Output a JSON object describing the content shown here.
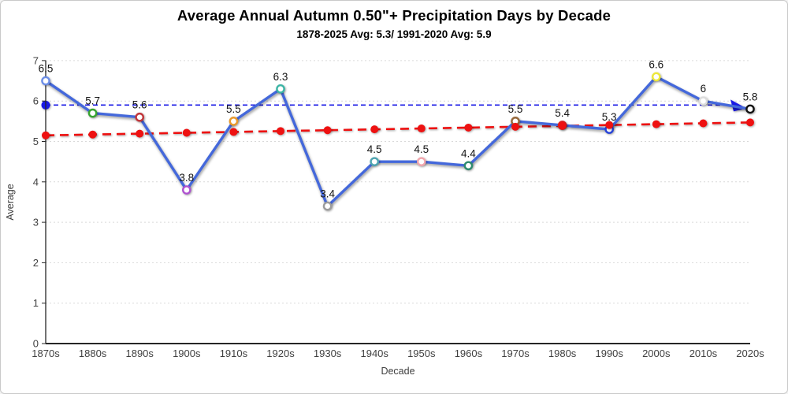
{
  "chart_data": {
    "type": "line",
    "title": "Average Annual Autumn 0.50\"+ Precipitation Days by Decade",
    "subtitle": "1878-2025 Avg: 5.3/ 1991-2020 Avg: 5.9",
    "xlabel": "Decade",
    "ylabel": "Average",
    "ylim": [
      0,
      7
    ],
    "yticks": [
      0,
      1,
      2,
      3,
      4,
      5,
      6,
      7
    ],
    "grid": "horizontal-dotted",
    "legend_position": "none",
    "categories": [
      "1870s",
      "1880s",
      "1890s",
      "1900s",
      "1910s",
      "1920s",
      "1930s",
      "1940s",
      "1950s",
      "1960s",
      "1970s",
      "1980s",
      "1990s",
      "2000s",
      "2010s",
      "2020s"
    ],
    "series": [
      {
        "name": "decade-average",
        "type": "line-markers",
        "values": [
          6.5,
          5.7,
          5.6,
          3.8,
          5.5,
          6.3,
          3.4,
          4.5,
          4.5,
          4.4,
          5.5,
          5.4,
          5.3,
          6.6,
          6,
          5.8
        ],
        "point_labels": [
          "6.5",
          "5.7",
          "5.6",
          "3.8",
          "5.5",
          "6.3",
          "3.4",
          "4.5",
          "4.5",
          "4.4",
          "5.5",
          "5.4",
          "5.3",
          "6.6",
          "6",
          "5.8"
        ],
        "line_color": "#4468db",
        "marker_fill": "#ffffff",
        "marker_ring_colors": [
          "#6c8ee8",
          "#36a42f",
          "#c2363b",
          "#af52d0",
          "#e99a2c",
          "#3ab5a5",
          "#9c9c9c",
          "#4da4b0",
          "#f2a5ac",
          "#2e8b6e",
          "#96683a",
          "#e02020",
          "#2743d9",
          "#ede83b",
          "#dcdcdc",
          "#111111"
        ]
      },
      {
        "name": "linear-trend",
        "type": "trend-dashed",
        "start_value": 5.15,
        "end_value": 5.47,
        "color": "#ee1111",
        "dots_at_each_category": true
      },
      {
        "name": "1991-2020-average-reference",
        "type": "reference-dashed-arrow",
        "value": 5.9,
        "color": "#1a1ae6",
        "has_start_dot": true,
        "has_end_arrow": true
      }
    ]
  }
}
